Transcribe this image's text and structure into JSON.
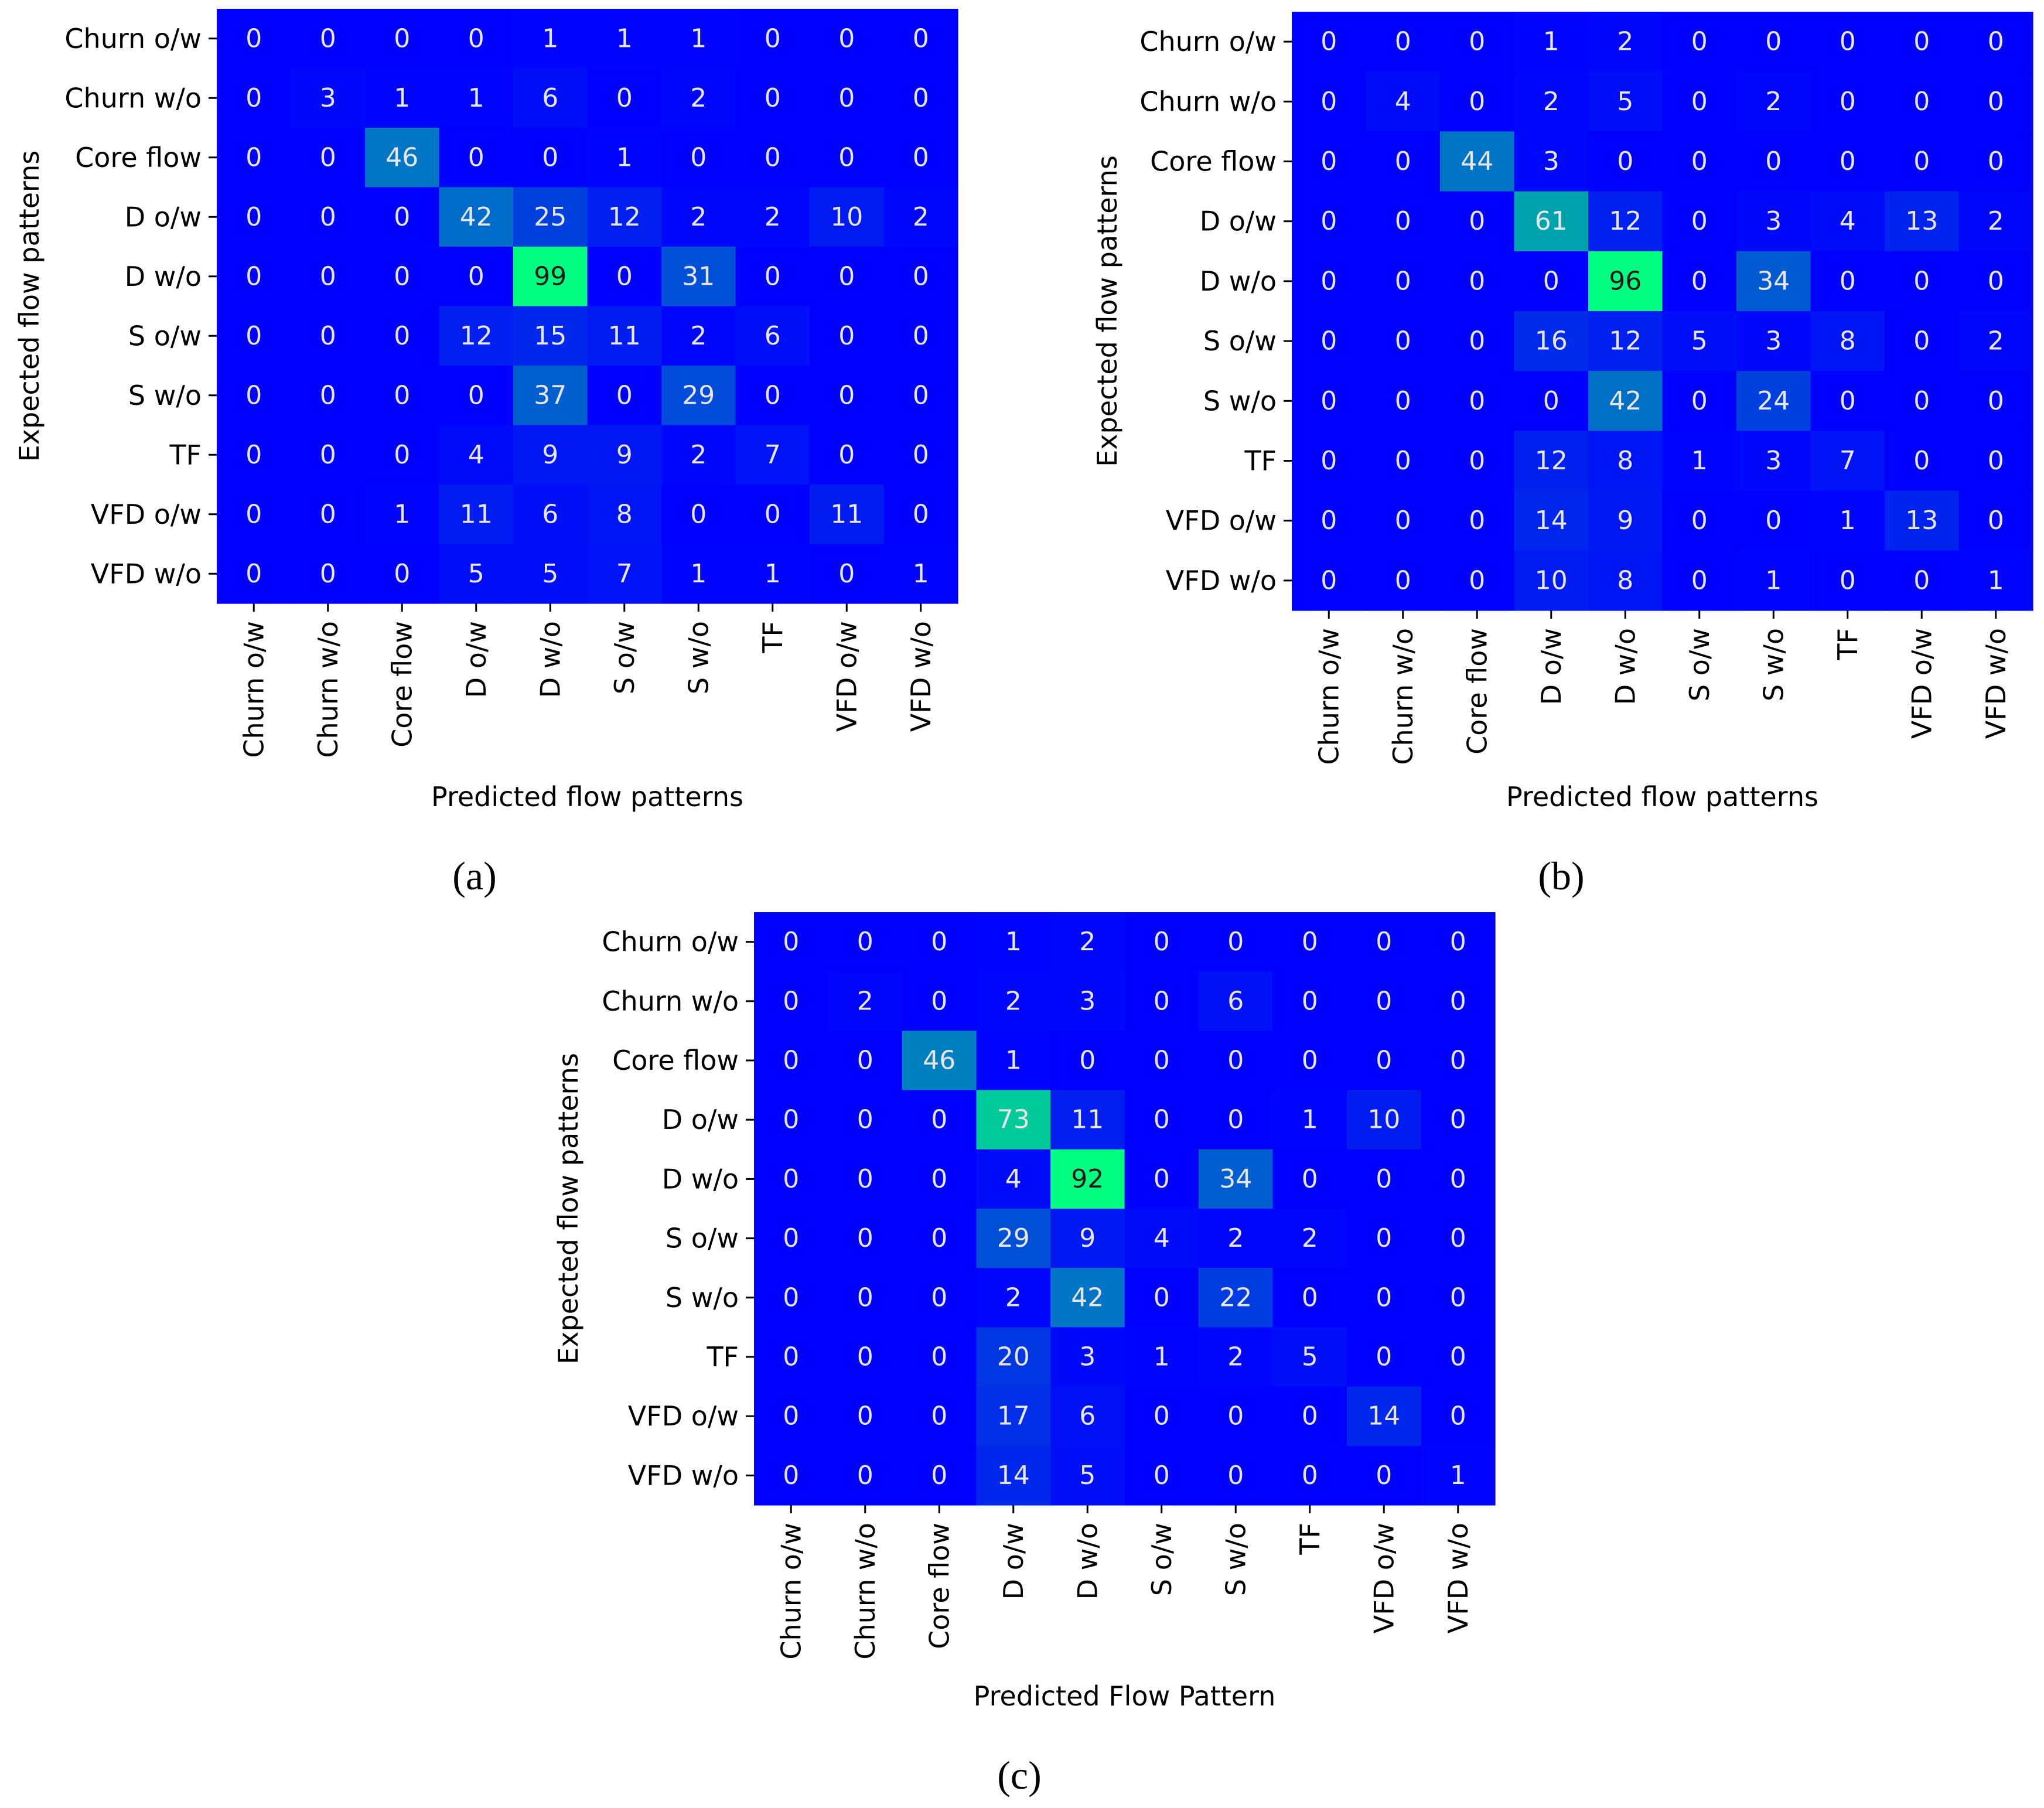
{
  "chart_data": [
    {
      "type": "heatmap",
      "panel_label": "(a)",
      "xlabel": "Predicted flow patterns",
      "ylabel": "Expected flow patterns",
      "x_categories": [
        "Churn o/w",
        "Churn w/o",
        "Core flow",
        "D o/w",
        "D w/o",
        "S o/w",
        "S w/o",
        "TF",
        "VFD o/w",
        "VFD w/o"
      ],
      "y_categories": [
        "Churn o/w",
        "Churn w/o",
        "Core flow",
        "D o/w",
        "D w/o",
        "S o/w",
        "S w/o",
        "TF",
        "VFD o/w",
        "VFD w/o"
      ],
      "values": [
        [
          0,
          0,
          0,
          0,
          1,
          1,
          1,
          0,
          0,
          0
        ],
        [
          0,
          3,
          1,
          1,
          6,
          0,
          2,
          0,
          0,
          0
        ],
        [
          0,
          0,
          46,
          0,
          0,
          1,
          0,
          0,
          0,
          0
        ],
        [
          0,
          0,
          0,
          42,
          25,
          12,
          2,
          2,
          10,
          2
        ],
        [
          0,
          0,
          0,
          0,
          99,
          0,
          31,
          0,
          0,
          0
        ],
        [
          0,
          0,
          0,
          12,
          15,
          11,
          2,
          6,
          0,
          0
        ],
        [
          0,
          0,
          0,
          0,
          37,
          0,
          29,
          0,
          0,
          0
        ],
        [
          0,
          0,
          0,
          4,
          9,
          9,
          2,
          7,
          0,
          0
        ],
        [
          0,
          0,
          1,
          11,
          6,
          8,
          0,
          0,
          11,
          0
        ],
        [
          0,
          0,
          0,
          5,
          5,
          7,
          1,
          1,
          0,
          1
        ]
      ],
      "vmax": 99,
      "colormap": "winter",
      "colorbar": false
    },
    {
      "type": "heatmap",
      "panel_label": "(b)",
      "xlabel": "Predicted flow patterns",
      "ylabel": "Expected flow patterns",
      "x_categories": [
        "Churn o/w",
        "Churn w/o",
        "Core flow",
        "D o/w",
        "D w/o",
        "S o/w",
        "S w/o",
        "TF",
        "VFD o/w",
        "VFD w/o"
      ],
      "y_categories": [
        "Churn o/w",
        "Churn w/o",
        "Core flow",
        "D o/w",
        "D w/o",
        "S o/w",
        "S w/o",
        "TF",
        "VFD o/w",
        "VFD w/o"
      ],
      "values": [
        [
          0,
          0,
          0,
          1,
          2,
          0,
          0,
          0,
          0,
          0
        ],
        [
          0,
          4,
          0,
          2,
          5,
          0,
          2,
          0,
          0,
          0
        ],
        [
          0,
          0,
          44,
          3,
          0,
          0,
          0,
          0,
          0,
          0
        ],
        [
          0,
          0,
          0,
          61,
          12,
          0,
          3,
          4,
          13,
          2
        ],
        [
          0,
          0,
          0,
          0,
          96,
          0,
          34,
          0,
          0,
          0
        ],
        [
          0,
          0,
          0,
          16,
          12,
          5,
          3,
          8,
          0,
          2
        ],
        [
          0,
          0,
          0,
          0,
          42,
          0,
          24,
          0,
          0,
          0
        ],
        [
          0,
          0,
          0,
          12,
          8,
          1,
          3,
          7,
          0,
          0
        ],
        [
          0,
          0,
          0,
          14,
          9,
          0,
          0,
          1,
          13,
          0
        ],
        [
          0,
          0,
          0,
          10,
          8,
          0,
          1,
          0,
          0,
          1
        ]
      ],
      "vmax": 96,
      "colormap": "winter",
      "colorbar": false
    },
    {
      "type": "heatmap",
      "panel_label": "(c)",
      "xlabel": "Predicted Flow Pattern",
      "ylabel": "Expected flow patterns",
      "x_categories": [
        "Churn o/w",
        "Churn w/o",
        "Core flow",
        "D o/w",
        "D w/o",
        "S o/w",
        "S w/o",
        "TF",
        "VFD o/w",
        "VFD w/o"
      ],
      "y_categories": [
        "Churn o/w",
        "Churn w/o",
        "Core flow",
        "D o/w",
        "D w/o",
        "S o/w",
        "S w/o",
        "TF",
        "VFD o/w",
        "VFD w/o"
      ],
      "values": [
        [
          0,
          0,
          0,
          1,
          2,
          0,
          0,
          0,
          0,
          0
        ],
        [
          0,
          2,
          0,
          2,
          3,
          0,
          6,
          0,
          0,
          0
        ],
        [
          0,
          0,
          46,
          1,
          0,
          0,
          0,
          0,
          0,
          0
        ],
        [
          0,
          0,
          0,
          73,
          11,
          0,
          0,
          1,
          10,
          0
        ],
        [
          0,
          0,
          0,
          4,
          92,
          0,
          34,
          0,
          0,
          0
        ],
        [
          0,
          0,
          0,
          29,
          9,
          4,
          2,
          2,
          0,
          0
        ],
        [
          0,
          0,
          0,
          2,
          42,
          0,
          22,
          0,
          0,
          0
        ],
        [
          0,
          0,
          0,
          20,
          3,
          1,
          2,
          5,
          0,
          0
        ],
        [
          0,
          0,
          0,
          17,
          6,
          0,
          0,
          0,
          14,
          0
        ],
        [
          0,
          0,
          0,
          14,
          5,
          0,
          0,
          0,
          0,
          1
        ]
      ],
      "vmax": 92,
      "colormap": "winter",
      "colorbar": false
    }
  ]
}
